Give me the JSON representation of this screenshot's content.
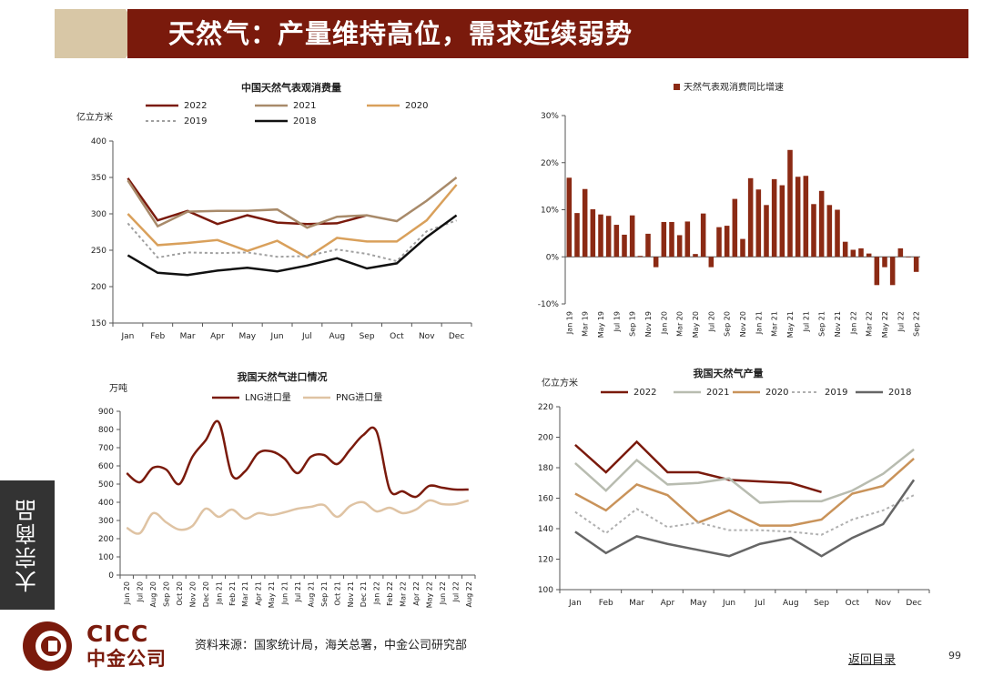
{
  "header": {
    "title": "天然气：产量维持高位，需求延续弱势"
  },
  "sidebar": {
    "label": "大宗商品"
  },
  "footer": {
    "source": "资料来源：国家统计局，海关总署，中金公司研究部",
    "back_link": "返回目录",
    "page_number": "99",
    "brand_en": "CICC",
    "brand_cn": "中金公司"
  },
  "colors": {
    "brand": "#7a1a0c",
    "bar": "#8b2a14",
    "dark": "#333333"
  },
  "chart_data": [
    {
      "id": "c1",
      "type": "line",
      "title": "中国天然气表观消费量",
      "ylabel": "亿立方米",
      "categories": [
        "Jan",
        "Feb",
        "Mar",
        "Apr",
        "May",
        "Jun",
        "Jul",
        "Aug",
        "Sep",
        "Oct",
        "Nov",
        "Dec"
      ],
      "ylim": [
        150,
        400
      ],
      "yticks": [
        150,
        200,
        250,
        300,
        350,
        400
      ],
      "series": [
        {
          "name": "2022",
          "color": "#7a1a0c",
          "dash": "",
          "width": 2.5,
          "values": [
            349,
            291,
            304,
            286,
            298,
            288,
            286,
            287,
            298,
            null,
            null,
            null
          ]
        },
        {
          "name": "2021",
          "color": "#a88a6a",
          "dash": "",
          "width": 2.5,
          "values": [
            346,
            283,
            303,
            304,
            304,
            306,
            281,
            296,
            298,
            290,
            318,
            350
          ]
        },
        {
          "name": "2020",
          "color": "#d9a05b",
          "dash": "",
          "width": 2.5,
          "values": [
            300,
            257,
            260,
            264,
            249,
            263,
            240,
            267,
            262,
            262,
            291,
            340
          ]
        },
        {
          "name": "2019",
          "color": "#a0a0a0",
          "dash": "3,3",
          "width": 2,
          "values": [
            287,
            240,
            247,
            246,
            247,
            241,
            242,
            251,
            245,
            235,
            276,
            291
          ]
        },
        {
          "name": "2018",
          "color": "#111111",
          "dash": "",
          "width": 2.5,
          "values": [
            243,
            219,
            216,
            222,
            226,
            221,
            229,
            239,
            225,
            232,
            268,
            298
          ]
        }
      ]
    },
    {
      "id": "c2",
      "type": "bar",
      "title": "天然气表观消费同比增速",
      "legend": "天然气表观消费同比增速",
      "ylim": [
        -10,
        30
      ],
      "yticks": [
        -10,
        0,
        10,
        20,
        30
      ],
      "tick_format": "percent",
      "categories": [
        "Jan 19",
        "Feb 19",
        "Mar 19",
        "Apr 19",
        "May 19",
        "Jun 19",
        "Jul 19",
        "Aug 19",
        "Sep 19",
        "Oct 19",
        "Nov 19",
        "Dec 19",
        "Jan 20",
        "Feb 20",
        "Mar 20",
        "Apr 20",
        "May 20",
        "Jun 20",
        "Jul 20",
        "Aug 20",
        "Sep 20",
        "Oct 20",
        "Nov 20",
        "Dec 20",
        "Jan 21",
        "Feb 21",
        "Mar 21",
        "Apr 21",
        "May 21",
        "Jun 21",
        "Jul 21",
        "Aug 21",
        "Sep 21",
        "Oct 21",
        "Nov 21",
        "Dec 21",
        "Jan 22",
        "Feb 22",
        "Mar 22",
        "Apr 22",
        "May 22",
        "Jun 22",
        "Jul 22",
        "Aug 22",
        "Sep 22"
      ],
      "shown_labels": [
        "Jan 19",
        "Mar 19",
        "May 19",
        "Jul 19",
        "Sep 19",
        "Nov 19",
        "Jan 20",
        "Mar 20",
        "May 20",
        "Jul 20",
        "Sep 20",
        "Nov 20",
        "Jan 21",
        "Mar 21",
        "May 21",
        "Jul 21",
        "Sep 21",
        "Nov 21",
        "Jan 22",
        "Mar 22",
        "May 22",
        "Jul 22",
        "Sep 22"
      ],
      "values": [
        16.8,
        9.3,
        14.4,
        10.1,
        9,
        8.7,
        6.8,
        4.7,
        8.8,
        0.2,
        4.9,
        -2.2,
        7.4,
        7.4,
        4.6,
        7.5,
        0.6,
        9.2,
        -2.2,
        6.3,
        6.6,
        12.3,
        3.8,
        16.7,
        14.3,
        11,
        16.5,
        15.2,
        22.7,
        17,
        17.2,
        11.2,
        14,
        11,
        10,
        3.2,
        1.5,
        1.8,
        0.7,
        -6,
        -2.2,
        -6,
        1.8,
        0,
        -3.2
      ]
    },
    {
      "id": "c3",
      "type": "line",
      "title": "我国天然气进口情况",
      "ylabel": "万吨",
      "categories": [
        "Jun 20",
        "Jul 20",
        "Aug 20",
        "Sep 20",
        "Oct 20",
        "Nov 20",
        "Dec 20",
        "Jan 21",
        "Feb 21",
        "Mar 21",
        "Apr 21",
        "May 21",
        "Jun 21",
        "Jul 21",
        "Aug 21",
        "Sep 21",
        "Oct 21",
        "Nov 21",
        "Dec 21",
        "Jan 22",
        "Feb 22",
        "Mar 22",
        "Apr 22",
        "May 22",
        "Jun 22",
        "Jul 22",
        "Aug 22"
      ],
      "ylim": [
        0,
        900
      ],
      "yticks": [
        0,
        100,
        200,
        300,
        400,
        500,
        600,
        700,
        800,
        900
      ],
      "smooth": true,
      "series": [
        {
          "name": "LNG进口量",
          "color": "#7a1a0c",
          "dash": "",
          "width": 2.5,
          "values": [
            560,
            510,
            590,
            580,
            500,
            650,
            740,
            840,
            550,
            570,
            670,
            680,
            640,
            560,
            650,
            660,
            610,
            690,
            770,
            790,
            470,
            460,
            430,
            490,
            480,
            470,
            470
          ]
        },
        {
          "name": "PNG进口量",
          "color": "#dfc3a3",
          "dash": "",
          "width": 2.5,
          "values": [
            260,
            230,
            340,
            290,
            250,
            270,
            365,
            320,
            360,
            310,
            340,
            330,
            345,
            365,
            375,
            385,
            320,
            380,
            400,
            350,
            370,
            340,
            360,
            410,
            390,
            390,
            410
          ]
        }
      ]
    },
    {
      "id": "c4",
      "type": "line",
      "title": "我国天然气产量",
      "ylabel": "亿立方米",
      "categories": [
        "Jan",
        "Feb",
        "Mar",
        "Apr",
        "May",
        "Jun",
        "Jul",
        "Aug",
        "Sep",
        "Oct",
        "Nov",
        "Dec"
      ],
      "ylim": [
        100,
        220
      ],
      "yticks": [
        100,
        120,
        140,
        160,
        180,
        200,
        220
      ],
      "series": [
        {
          "name": "2022",
          "color": "#7a1a0c",
          "dash": "",
          "width": 2.5,
          "values": [
            195,
            177,
            197,
            177,
            177,
            172,
            171,
            170,
            164,
            null,
            null,
            null
          ]
        },
        {
          "name": "2021",
          "color": "#b8bcb0",
          "dash": "",
          "width": 2.5,
          "values": [
            183,
            165,
            185,
            169,
            170,
            173,
            157,
            158,
            158,
            165,
            176,
            192
          ]
        },
        {
          "name": "2020",
          "color": "#c9935a",
          "dash": "",
          "width": 2.5,
          "values": [
            163,
            152,
            169,
            162,
            144,
            152,
            142,
            142,
            146,
            163,
            168,
            186
          ]
        },
        {
          "name": "2019",
          "color": "#b0b0b0",
          "dash": "3,3",
          "width": 2,
          "values": [
            151,
            137,
            153,
            141,
            144,
            139,
            139,
            138,
            136,
            146,
            152,
            162
          ]
        },
        {
          "name": "2018",
          "color": "#666666",
          "dash": "",
          "width": 2.5,
          "values": [
            138,
            124,
            135,
            130,
            126,
            122,
            130,
            134,
            122,
            134,
            143,
            172
          ]
        }
      ]
    }
  ]
}
